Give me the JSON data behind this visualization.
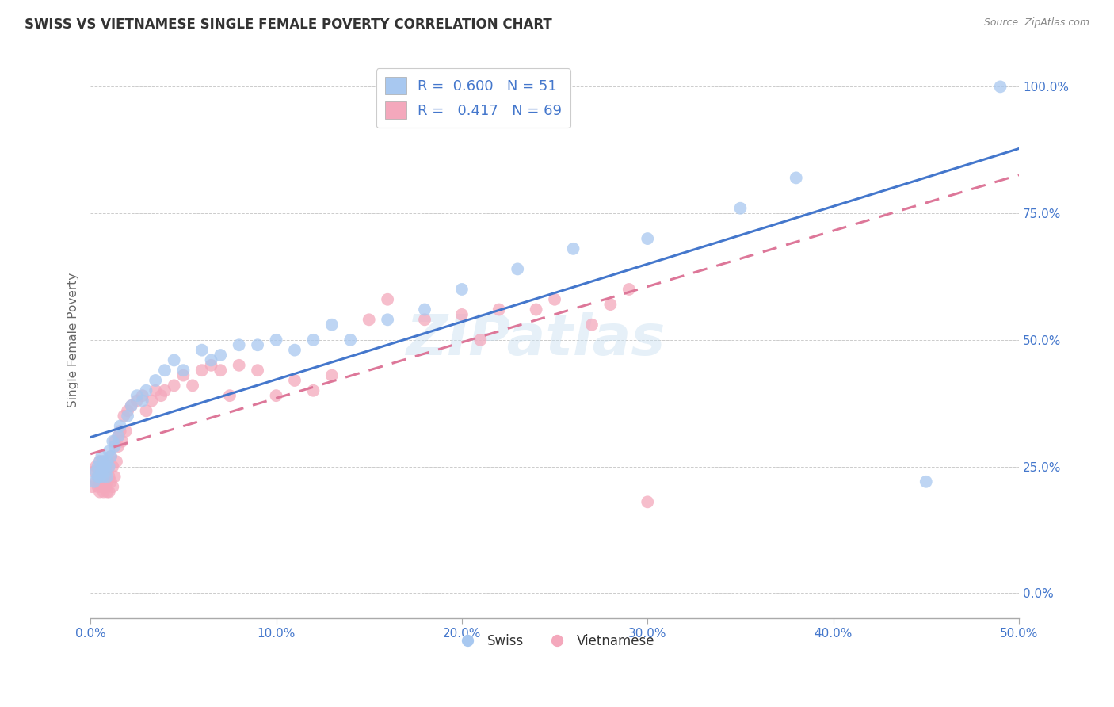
{
  "title": "SWISS VS VIETNAMESE SINGLE FEMALE POVERTY CORRELATION CHART",
  "source": "Source: ZipAtlas.com",
  "ylabel": "Single Female Poverty",
  "xlim": [
    0.0,
    0.5
  ],
  "ylim": [
    -0.05,
    1.05
  ],
  "xticks": [
    0.0,
    0.1,
    0.2,
    0.3,
    0.4,
    0.5
  ],
  "xtick_labels": [
    "0.0%",
    "10.0%",
    "20.0%",
    "30.0%",
    "40.0%",
    "50.0%"
  ],
  "ytick_positions": [
    0.0,
    0.25,
    0.5,
    0.75,
    1.0
  ],
  "ytick_labels": [
    "0.0%",
    "25.0%",
    "50.0%",
    "75.0%",
    "100.0%"
  ],
  "swiss_color": "#a8c8f0",
  "viet_color": "#f4a8bc",
  "swiss_line_color": "#4477cc",
  "viet_line_color": "#dd7799",
  "label_color": "#4477cc",
  "swiss_R": 0.6,
  "swiss_N": 51,
  "viet_R": 0.417,
  "viet_N": 69,
  "legend_swiss_label": "Swiss",
  "legend_viet_label": "Vietnamese",
  "watermark": "ZIPatlas",
  "swiss_x": [
    0.002,
    0.003,
    0.004,
    0.004,
    0.005,
    0.005,
    0.006,
    0.006,
    0.007,
    0.007,
    0.007,
    0.008,
    0.008,
    0.009,
    0.009,
    0.01,
    0.01,
    0.011,
    0.012,
    0.013,
    0.015,
    0.016,
    0.02,
    0.022,
    0.025,
    0.028,
    0.03,
    0.035,
    0.04,
    0.045,
    0.05,
    0.06,
    0.065,
    0.07,
    0.08,
    0.09,
    0.1,
    0.11,
    0.12,
    0.13,
    0.14,
    0.16,
    0.18,
    0.2,
    0.23,
    0.26,
    0.3,
    0.35,
    0.38,
    0.45,
    0.49
  ],
  "swiss_y": [
    0.22,
    0.24,
    0.23,
    0.25,
    0.23,
    0.26,
    0.24,
    0.27,
    0.25,
    0.23,
    0.26,
    0.25,
    0.24,
    0.23,
    0.26,
    0.25,
    0.28,
    0.27,
    0.3,
    0.29,
    0.31,
    0.33,
    0.35,
    0.37,
    0.39,
    0.38,
    0.4,
    0.42,
    0.44,
    0.46,
    0.44,
    0.48,
    0.46,
    0.47,
    0.49,
    0.49,
    0.5,
    0.48,
    0.5,
    0.53,
    0.5,
    0.54,
    0.56,
    0.6,
    0.64,
    0.68,
    0.7,
    0.76,
    0.82,
    0.22,
    1.0
  ],
  "viet_x": [
    0.001,
    0.002,
    0.003,
    0.003,
    0.004,
    0.004,
    0.005,
    0.005,
    0.005,
    0.006,
    0.006,
    0.007,
    0.007,
    0.007,
    0.008,
    0.008,
    0.008,
    0.009,
    0.009,
    0.01,
    0.01,
    0.01,
    0.011,
    0.011,
    0.012,
    0.012,
    0.013,
    0.013,
    0.014,
    0.015,
    0.015,
    0.016,
    0.017,
    0.018,
    0.019,
    0.02,
    0.022,
    0.025,
    0.028,
    0.03,
    0.033,
    0.035,
    0.038,
    0.04,
    0.045,
    0.05,
    0.055,
    0.06,
    0.065,
    0.07,
    0.075,
    0.08,
    0.09,
    0.1,
    0.11,
    0.12,
    0.13,
    0.15,
    0.16,
    0.18,
    0.2,
    0.21,
    0.22,
    0.24,
    0.25,
    0.27,
    0.28,
    0.29,
    0.3
  ],
  "viet_y": [
    0.21,
    0.24,
    0.22,
    0.25,
    0.21,
    0.23,
    0.2,
    0.22,
    0.26,
    0.21,
    0.23,
    0.2,
    0.22,
    0.26,
    0.21,
    0.23,
    0.25,
    0.2,
    0.22,
    0.23,
    0.2,
    0.25,
    0.22,
    0.27,
    0.21,
    0.25,
    0.23,
    0.3,
    0.26,
    0.31,
    0.29,
    0.32,
    0.3,
    0.35,
    0.32,
    0.36,
    0.37,
    0.38,
    0.39,
    0.36,
    0.38,
    0.4,
    0.39,
    0.4,
    0.41,
    0.43,
    0.41,
    0.44,
    0.45,
    0.44,
    0.39,
    0.45,
    0.44,
    0.39,
    0.42,
    0.4,
    0.43,
    0.54,
    0.58,
    0.54,
    0.55,
    0.5,
    0.56,
    0.56,
    0.58,
    0.53,
    0.57,
    0.6,
    0.18
  ]
}
